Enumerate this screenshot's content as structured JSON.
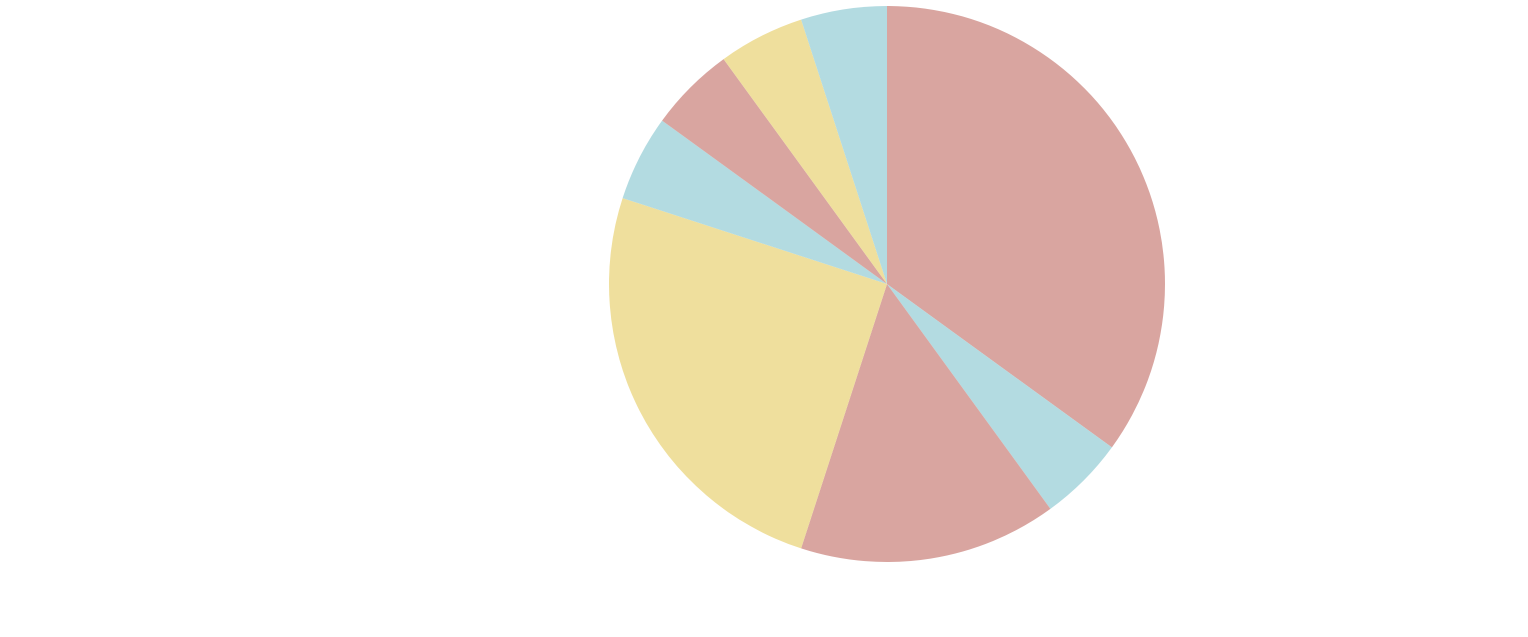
{
  "chart_data": {
    "type": "pie",
    "values": [
      35,
      5,
      15,
      25,
      5,
      5,
      5,
      5
    ],
    "colors": [
      "#d9a5a0",
      "#b3dbe1",
      "#d9a5a0",
      "#efdf9d",
      "#b3dbe1",
      "#d9a5a0",
      "#efdf9d",
      "#b3dbe1"
    ]
  }
}
